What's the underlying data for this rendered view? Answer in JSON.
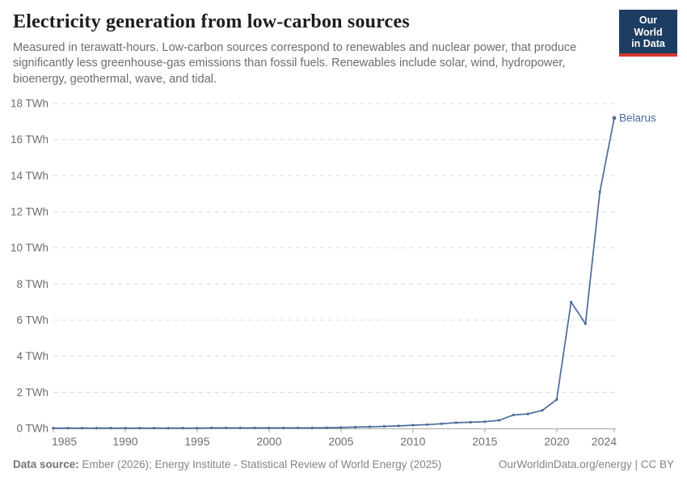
{
  "header": {
    "title": "Electricity generation from low-carbon sources",
    "subtitle": "Measured in terawatt-hours. Low-carbon sources correspond to renewables and nuclear power, that produce significantly less greenhouse-gas emissions than fossil fuels. Renewables include solar, wind, hydropower, bioenergy, geothermal, wave, and tidal.",
    "logo": {
      "line1": "Our World",
      "line2": "in Data"
    }
  },
  "chart_data": {
    "type": "line",
    "title": "Electricity generation from low-carbon sources",
    "x": [
      1985,
      1986,
      1987,
      1988,
      1989,
      1990,
      1991,
      1992,
      1993,
      1994,
      1995,
      1996,
      1997,
      1998,
      1999,
      2000,
      2001,
      2002,
      2003,
      2004,
      2005,
      2006,
      2007,
      2008,
      2009,
      2010,
      2011,
      2012,
      2013,
      2014,
      2015,
      2016,
      2017,
      2018,
      2019,
      2020,
      2021,
      2022,
      2023,
      2024
    ],
    "series": [
      {
        "name": "Belarus",
        "color": "#4C6A9C",
        "values": [
          0.02,
          0.02,
          0.02,
          0.02,
          0.02,
          0.02,
          0.02,
          0.02,
          0.02,
          0.02,
          0.02,
          0.03,
          0.03,
          0.03,
          0.03,
          0.03,
          0.03,
          0.03,
          0.03,
          0.04,
          0.05,
          0.07,
          0.09,
          0.11,
          0.14,
          0.18,
          0.21,
          0.26,
          0.32,
          0.34,
          0.37,
          0.45,
          0.75,
          0.8,
          1.0,
          1.6,
          7.0,
          5.8,
          13.1,
          17.2
        ]
      }
    ],
    "xlabel": "",
    "ylabel": "",
    "xlim": [
      1985,
      2024
    ],
    "ylim": [
      0,
      18
    ],
    "xticks": [
      1985,
      1990,
      1995,
      2000,
      2005,
      2010,
      2015,
      2020,
      2024
    ],
    "yticks": [
      0,
      2,
      4,
      6,
      8,
      10,
      12,
      14,
      16,
      18
    ],
    "ytick_suffix": " TWh",
    "grid": "horizontal-dashed",
    "legend_position": "end-of-line-label",
    "colors": {
      "line": "#4C6A9C",
      "grid": "#dcdcdc",
      "axis": "#a5a5a5",
      "tick_label": "#6e6e6e"
    }
  },
  "footer": {
    "source_label": "Data source:",
    "source_text": " Ember (2026); Energy Institute - Statistical Review of World Energy (2025)",
    "credit": "OurWorldinData.org/energy | CC BY"
  }
}
